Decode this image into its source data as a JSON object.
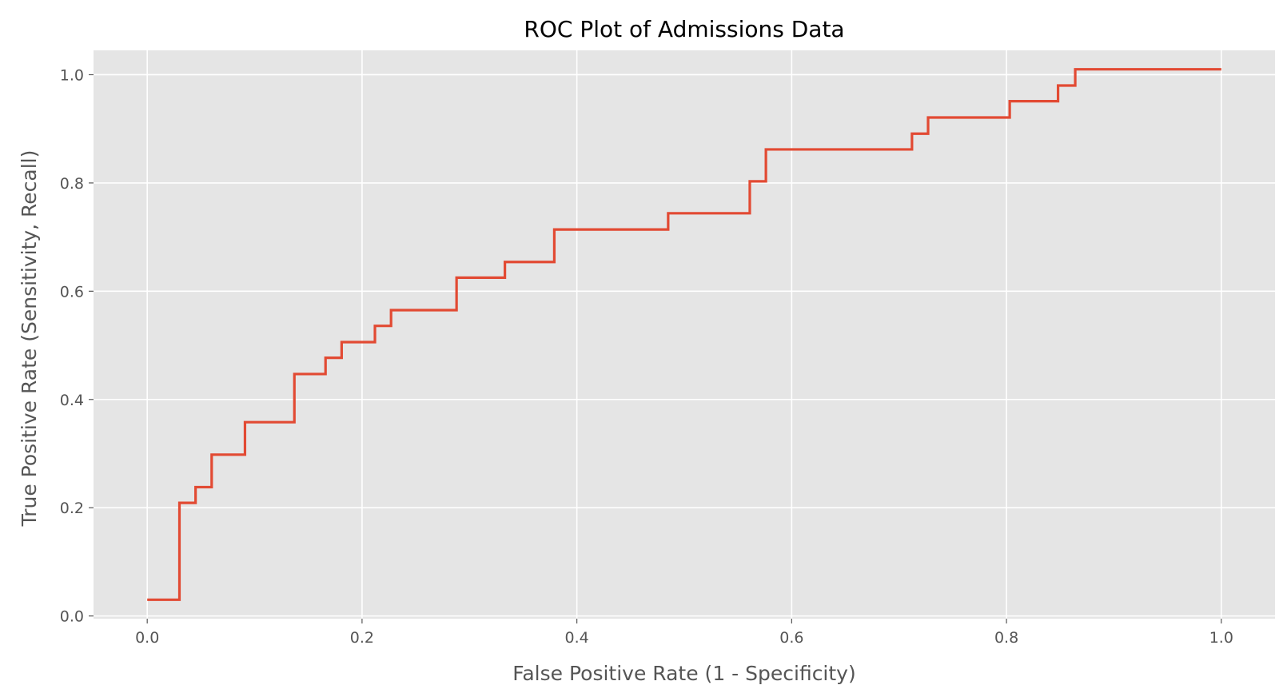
{
  "chart_data": {
    "type": "line",
    "title": "ROC Plot of Admissions Data",
    "xlabel": "False Positive Rate (1 - Specificity)",
    "ylabel": "True Positive Rate (Sensitivity, Recall)",
    "xlim": [
      -0.05,
      1.05
    ],
    "ylim": [
      -0.005,
      1.045
    ],
    "xticks": [
      0.0,
      0.2,
      0.4,
      0.6,
      0.8,
      1.0
    ],
    "xtick_labels": [
      "0.0",
      "0.2",
      "0.4",
      "0.6",
      "0.8",
      "1.0"
    ],
    "yticks": [
      0.0,
      0.2,
      0.4,
      0.6,
      0.8,
      1.0
    ],
    "ytick_labels": [
      "0.0",
      "0.2",
      "0.4",
      "0.6",
      "0.8",
      "1.0"
    ],
    "grid": true,
    "background": "#e5e5e5",
    "grid_color": "#ffffff",
    "series": [
      {
        "color": "#e24a33",
        "x": [
          0.0,
          0.03,
          0.03,
          0.045,
          0.045,
          0.06,
          0.06,
          0.091,
          0.091,
          0.137,
          0.137,
          0.166,
          0.166,
          0.181,
          0.181,
          0.212,
          0.212,
          0.227,
          0.227,
          0.288,
          0.288,
          0.333,
          0.333,
          0.379,
          0.379,
          0.485,
          0.485,
          0.561,
          0.561,
          0.576,
          0.576,
          0.712,
          0.712,
          0.727,
          0.727,
          0.803,
          0.803,
          0.848,
          0.848,
          0.864,
          0.864,
          1.0
        ],
        "y": [
          0.03,
          0.03,
          0.209,
          0.209,
          0.238,
          0.238,
          0.298,
          0.298,
          0.358,
          0.358,
          0.447,
          0.447,
          0.477,
          0.477,
          0.506,
          0.506,
          0.536,
          0.536,
          0.565,
          0.565,
          0.625,
          0.625,
          0.654,
          0.654,
          0.714,
          0.714,
          0.744,
          0.744,
          0.803,
          0.803,
          0.862,
          0.862,
          0.891,
          0.891,
          0.921,
          0.921,
          0.951,
          0.951,
          0.98,
          0.98,
          1.01,
          1.01
        ]
      }
    ]
  }
}
